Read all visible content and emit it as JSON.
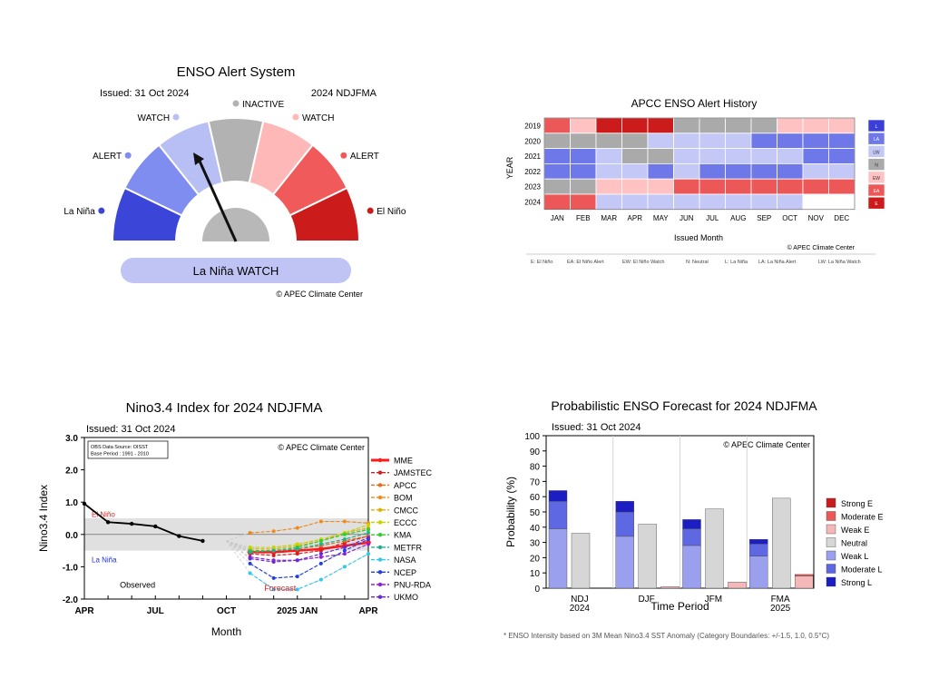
{
  "chart_data": [
    {
      "type": "gauge",
      "title": "ENSO Alert System",
      "issued": "Issued: 31 Oct 2024",
      "target": "2024 NDJFMA",
      "segments": [
        {
          "label": "La Niña",
          "color": "#3b46d8"
        },
        {
          "label": "ALERT",
          "color": "#7f8cf0"
        },
        {
          "label": "WATCH",
          "color": "#b8bff4"
        },
        {
          "label": "INACTIVE",
          "color": "#b2b2b2"
        },
        {
          "label": "WATCH",
          "color": "#ffb8b8"
        },
        {
          "label": "ALERT",
          "color": "#f05a5a"
        },
        {
          "label": "El Niño",
          "color": "#cc1b1b"
        }
      ],
      "pointer_segment": 2,
      "status": "La Niña WATCH",
      "credit": "© APEC Climate Center"
    },
    {
      "type": "heatmap",
      "title": "APCC ENSO Alert History",
      "ylabel": "YEAR",
      "xlabel": "Issued Month",
      "months": [
        "JAN",
        "FEB",
        "MAR",
        "APR",
        "MAY",
        "JUN",
        "JUL",
        "AUG",
        "SEP",
        "OCT",
        "NOV",
        "DEC"
      ],
      "years": [
        "2019",
        "2020",
        "2021",
        "2022",
        "2023",
        "2024"
      ],
      "cells": [
        [
          "EA",
          "EW",
          "E",
          "E",
          "E",
          "N",
          "N",
          "N",
          "N",
          "EW",
          "EW",
          "EW"
        ],
        [
          "N",
          "N",
          "N",
          "N",
          "LW",
          "LW",
          "LW",
          "LW",
          "LA",
          "LA",
          "LA",
          "LA"
        ],
        [
          "LA",
          "LA",
          "LW",
          "N",
          "N",
          "LW",
          "LW",
          "LW",
          "LW",
          "LW",
          "LA",
          "LA"
        ],
        [
          "LA",
          "LA",
          "LW",
          "LW",
          "LA",
          "LW",
          "LA",
          "LA",
          "LA",
          "LA",
          "LW",
          "LW"
        ],
        [
          "N",
          "N",
          "EW",
          "EW",
          "EW",
          "EA",
          "EA",
          "EA",
          "EA",
          "EA",
          "EA",
          "EA"
        ],
        [
          "EA",
          "EA",
          "LW",
          "LW",
          "LW",
          "LW",
          "LW",
          "LW",
          "LW",
          "LW",
          "",
          ""
        ]
      ],
      "legend": [
        "L",
        "LA",
        "LW",
        "N",
        "EW",
        "EA",
        "E"
      ],
      "colors": {
        "L": "#3b3fd8",
        "LA": "#6f78e8",
        "LW": "#c4c8f6",
        "N": "#aaaaaa",
        "EW": "#ffc2c2",
        "EA": "#ec5858",
        "E": "#cc1b1b",
        "": "#ffffff"
      },
      "credit": "© APEC Climate Center",
      "footnote": [
        "E: El Niño",
        "EA: El Niño Alert",
        "EW: El Niño Watch",
        "N: Neutral",
        "L: La Niña",
        "LA: La Niña Alert",
        "LW: La Niña Watch"
      ]
    },
    {
      "type": "line",
      "title": "Nino3.4 Index for 2024 NDJFMA",
      "issued": "Issued: 31 Oct 2024",
      "ylabel": "Nino3.4 Index",
      "xlabel": "Month",
      "ylim": [
        -2.0,
        3.0
      ],
      "y_ticks": [
        "3.0",
        "2.0",
        "1.0",
        "0.0",
        "-1.0",
        "-2.0"
      ],
      "x_ticks": [
        "APR",
        "JUL",
        "OCT",
        "2025 JAN",
        "APR"
      ],
      "x_tick_positions": [
        0,
        3,
        6,
        9,
        12
      ],
      "obs_box": [
        "OBS Data Source: OISST",
        "Base Period : 1991 - 2010"
      ],
      "credit": "© APEC Climate Center",
      "el_nino_label": "El Niño",
      "la_nina_label": "La Niña",
      "observed_label": "Observed",
      "forecast_label": "Forecast",
      "observed": {
        "x": [
          0,
          1,
          2,
          3,
          4,
          5
        ],
        "y": [
          0.95,
          0.38,
          0.33,
          0.25,
          -0.05,
          -0.2
        ]
      },
      "forecast_x": [
        6,
        7,
        8,
        9,
        10,
        11,
        12
      ],
      "series": [
        {
          "name": "MME",
          "color": "#ff1a1a",
          "y": [
            -0.2,
            -0.55,
            -0.55,
            -0.5,
            -0.45,
            -0.35,
            -0.25
          ]
        },
        {
          "name": "JAMSTEC",
          "color": "#d42020",
          "y": [
            -0.2,
            -0.6,
            -0.65,
            -0.6,
            -0.5,
            -0.25,
            -0.05
          ]
        },
        {
          "name": "APCC",
          "color": "#e86b1a",
          "y": [
            -0.2,
            -0.5,
            -0.5,
            -0.45,
            -0.35,
            -0.2,
            -0.05
          ]
        },
        {
          "name": "BOM",
          "color": "#f08a1a",
          "y": [
            -0.2,
            0.05,
            0.1,
            0.2,
            0.4,
            0.4,
            0.35
          ]
        },
        {
          "name": "CMCC",
          "color": "#e2b000",
          "y": [
            -0.2,
            -0.45,
            -0.45,
            -0.35,
            -0.2,
            0.05,
            0.2
          ]
        },
        {
          "name": "ECCC",
          "color": "#c8d400",
          "y": [
            -0.2,
            -0.4,
            -0.4,
            -0.3,
            -0.15,
            0.05,
            0.3
          ]
        },
        {
          "name": "KMA",
          "color": "#30cc30",
          "y": [
            -0.2,
            -0.5,
            -0.5,
            -0.4,
            -0.2,
            0.0,
            0.15
          ]
        },
        {
          "name": "METFR",
          "color": "#20b090",
          "y": [
            -0.2,
            -0.55,
            -0.5,
            -0.45,
            -0.3,
            -0.15,
            0.05
          ]
        },
        {
          "name": "NASA",
          "color": "#30c8ec",
          "y": [
            -0.2,
            -1.2,
            -1.7,
            -1.7,
            -1.4,
            -1.0,
            -0.6
          ]
        },
        {
          "name": "NCEP",
          "color": "#2040e0",
          "y": [
            -0.2,
            -0.9,
            -1.35,
            -1.3,
            -0.9,
            -0.5,
            -0.15
          ]
        },
        {
          "name": "PNU-RDA",
          "color": "#9020d0",
          "y": [
            -0.2,
            -0.7,
            -0.8,
            -0.8,
            -0.7,
            -0.6,
            -0.3
          ]
        },
        {
          "name": "UKMO",
          "color": "#6a2ad0",
          "y": [
            -0.2,
            -0.75,
            -0.85,
            -0.8,
            -0.6,
            -0.4,
            -0.1
          ]
        }
      ]
    },
    {
      "type": "bar",
      "title": "Probabilistic ENSO Forecast for 2024 NDJFMA",
      "issued": "Issued: 31 Oct 2024",
      "ylabel": "Probability (%)",
      "xlabel": "Time Period",
      "ylim": [
        0,
        100
      ],
      "y_ticks": [
        "0",
        "10",
        "20",
        "30",
        "40",
        "50",
        "60",
        "70",
        "80",
        "90",
        "100"
      ],
      "categories": [
        "NDJ\n2024",
        "DJF",
        "JFM",
        "FMA\n2025"
      ],
      "la_nina": [
        {
          "name": "Weak L",
          "color": "#9aa0ee",
          "values": [
            39,
            34,
            28,
            21
          ]
        },
        {
          "name": "Moderate L",
          "color": "#5e68e2",
          "values": [
            18,
            16,
            11,
            8
          ]
        },
        {
          "name": "Strong L",
          "color": "#1c1ec4",
          "values": [
            7,
            7,
            6,
            3
          ]
        }
      ],
      "neutral": {
        "name": "Neutral",
        "color": "#d6d6d6",
        "values": [
          36,
          42,
          52,
          59
        ]
      },
      "el_nino": [
        {
          "name": "Weak E",
          "color": "#f4b8b8",
          "values": [
            0,
            1,
            4,
            8
          ]
        },
        {
          "name": "Moderate E",
          "color": "#ec5858",
          "values": [
            0,
            0,
            0,
            1
          ]
        },
        {
          "name": "Strong E",
          "color": "#cc1b1b",
          "values": [
            0,
            0,
            0,
            0
          ]
        }
      ],
      "legend": [
        {
          "name": "Strong E",
          "color": "#cc1b1b"
        },
        {
          "name": "Moderate E",
          "color": "#ec5858"
        },
        {
          "name": "Weak E",
          "color": "#f4b8b8"
        },
        {
          "name": "Neutral",
          "color": "#d6d6d6"
        },
        {
          "name": "Weak L",
          "color": "#9aa0ee"
        },
        {
          "name": "Moderate L",
          "color": "#5e68e2"
        },
        {
          "name": "Strong L",
          "color": "#1c1ec4"
        }
      ],
      "credit": "© APEC Climate Center",
      "footnote": "* ENSO Intensity based on 3M Mean Nino3.4 SST Anomaly (Category Boundaries: +/-1.5, 1.0, 0.5°C)"
    }
  ]
}
